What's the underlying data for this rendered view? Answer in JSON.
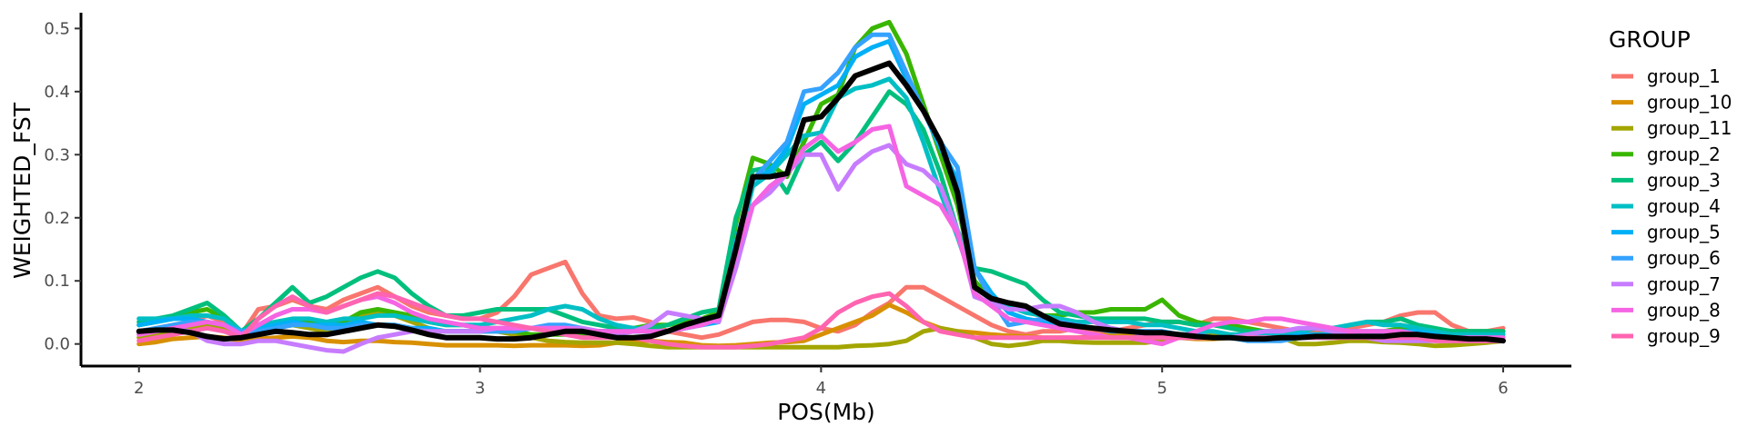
{
  "chart_data": {
    "type": "line",
    "xlabel": "POS(Mb)",
    "ylabel": "WEIGHTED_FST",
    "xlim": [
      1.83,
      6.2
    ],
    "ylim": [
      -0.035,
      0.525
    ],
    "x_ticks": [
      2,
      3,
      4,
      5,
      6
    ],
    "y_ticks": [
      0.0,
      0.1,
      0.2,
      0.3,
      0.4,
      0.5
    ],
    "x_tick_labels": [
      "2",
      "3",
      "4",
      "5",
      "6"
    ],
    "y_tick_labels": [
      "0.0",
      "0.1",
      "0.2",
      "0.3",
      "0.4",
      "0.5"
    ],
    "grid": false,
    "legend": {
      "title": "GROUP",
      "position": "right"
    },
    "x": [
      2.0,
      2.05,
      2.1,
      2.15,
      2.2,
      2.25,
      2.3,
      2.35,
      2.4,
      2.45,
      2.5,
      2.55,
      2.6,
      2.65,
      2.7,
      2.75,
      2.8,
      2.85,
      2.9,
      2.95,
      3.0,
      3.05,
      3.1,
      3.15,
      3.2,
      3.25,
      3.3,
      3.35,
      3.4,
      3.45,
      3.5,
      3.55,
      3.6,
      3.65,
      3.7,
      3.75,
      3.8,
      3.85,
      3.9,
      3.95,
      4.0,
      4.05,
      4.1,
      4.15,
      4.2,
      4.25,
      4.3,
      4.35,
      4.4,
      4.45,
      4.5,
      4.55,
      4.6,
      4.65,
      4.7,
      4.75,
      4.8,
      4.85,
      4.9,
      4.95,
      5.0,
      5.05,
      5.1,
      5.15,
      5.2,
      5.25,
      5.3,
      5.35,
      5.4,
      5.45,
      5.5,
      5.55,
      5.6,
      5.65,
      5.7,
      5.75,
      5.8,
      5.85,
      5.9,
      5.95,
      6.0
    ],
    "series": [
      {
        "name": "group_1",
        "color": "#F8766D",
        "width": 5,
        "values": [
          0.02,
          0.025,
          0.03,
          0.035,
          0.045,
          0.035,
          0.015,
          0.055,
          0.06,
          0.07,
          0.06,
          0.055,
          0.07,
          0.08,
          0.09,
          0.075,
          0.06,
          0.05,
          0.045,
          0.04,
          0.04,
          0.05,
          0.075,
          0.11,
          0.12,
          0.13,
          0.08,
          0.045,
          0.04,
          0.042,
          0.035,
          0.02,
          0.015,
          0.01,
          0.015,
          0.025,
          0.035,
          0.038,
          0.038,
          0.035,
          0.025,
          0.02,
          0.03,
          0.05,
          0.065,
          0.09,
          0.09,
          0.075,
          0.06,
          0.045,
          0.03,
          0.02,
          0.015,
          0.02,
          0.02,
          0.025,
          0.02,
          0.02,
          0.025,
          0.03,
          0.035,
          0.035,
          0.03,
          0.04,
          0.04,
          0.035,
          0.03,
          0.025,
          0.02,
          0.02,
          0.02,
          0.025,
          0.03,
          0.035,
          0.045,
          0.05,
          0.05,
          0.03,
          0.02,
          0.02,
          0.025
        ]
      },
      {
        "name": "group_10",
        "color": "#D89000",
        "width": 5,
        "values": [
          0.0,
          0.003,
          0.008,
          0.01,
          0.012,
          0.01,
          0.005,
          0.008,
          0.01,
          0.012,
          0.01,
          0.005,
          0.003,
          0.005,
          0.005,
          0.003,
          0.002,
          0.0,
          -0.002,
          -0.002,
          -0.002,
          -0.002,
          -0.003,
          -0.002,
          -0.002,
          -0.002,
          -0.003,
          -0.002,
          0.002,
          0.005,
          0.005,
          0.003,
          0.002,
          -0.002,
          -0.003,
          -0.002,
          0.0,
          0.002,
          0.003,
          0.005,
          0.015,
          0.025,
          0.035,
          0.045,
          0.062,
          0.05,
          0.035,
          0.025,
          0.02,
          0.018,
          0.015,
          0.013,
          0.012,
          0.01,
          0.01,
          0.01,
          0.012,
          0.015,
          0.015,
          0.015,
          0.012,
          0.01,
          0.008,
          0.008,
          0.01,
          0.01,
          0.01,
          0.008,
          0.01,
          0.015,
          0.02,
          0.018,
          0.012,
          0.01,
          0.008,
          0.008,
          0.008,
          0.005,
          0.005,
          0.005,
          0.005
        ]
      },
      {
        "name": "group_11",
        "color": "#A3A500",
        "width": 5,
        "values": [
          0.01,
          0.015,
          0.02,
          0.025,
          0.03,
          0.025,
          0.015,
          0.02,
          0.025,
          0.03,
          0.025,
          0.02,
          0.03,
          0.045,
          0.05,
          0.045,
          0.035,
          0.025,
          0.02,
          0.02,
          0.02,
          0.02,
          0.015,
          0.01,
          0.005,
          0.003,
          0.002,
          0.002,
          0.002,
          0.0,
          -0.003,
          -0.005,
          -0.005,
          -0.005,
          -0.005,
          -0.005,
          -0.005,
          -0.005,
          -0.005,
          -0.005,
          -0.005,
          -0.005,
          -0.003,
          -0.002,
          0.0,
          0.005,
          0.02,
          0.025,
          0.02,
          0.01,
          0.0,
          -0.003,
          0.0,
          0.005,
          0.005,
          0.003,
          0.002,
          0.002,
          0.002,
          0.002,
          0.005,
          0.01,
          0.015,
          0.015,
          0.015,
          0.012,
          0.01,
          0.01,
          0.0,
          0.0,
          0.002,
          0.005,
          0.005,
          0.003,
          0.002,
          0.0,
          -0.003,
          -0.002,
          0.0,
          0.002,
          0.005
        ]
      },
      {
        "name": "group_2",
        "color": "#39B600",
        "width": 5,
        "values": [
          0.03,
          0.035,
          0.04,
          0.05,
          0.055,
          0.04,
          0.02,
          0.025,
          0.03,
          0.035,
          0.035,
          0.03,
          0.035,
          0.05,
          0.055,
          0.05,
          0.045,
          0.035,
          0.03,
          0.03,
          0.025,
          0.025,
          0.02,
          0.015,
          0.015,
          0.015,
          0.015,
          0.02,
          0.02,
          0.025,
          0.03,
          0.03,
          0.035,
          0.04,
          0.05,
          0.19,
          0.295,
          0.285,
          0.265,
          0.32,
          0.38,
          0.395,
          0.47,
          0.5,
          0.51,
          0.46,
          0.38,
          0.3,
          0.22,
          0.1,
          0.07,
          0.06,
          0.05,
          0.045,
          0.045,
          0.05,
          0.05,
          0.055,
          0.055,
          0.055,
          0.07,
          0.045,
          0.035,
          0.03,
          0.03,
          0.025,
          0.02,
          0.015,
          0.015,
          0.015,
          0.015,
          0.015,
          0.015,
          0.02,
          0.025,
          0.025,
          0.02,
          0.02,
          0.02,
          0.02,
          0.02
        ]
      },
      {
        "name": "group_3",
        "color": "#00BF7D",
        "width": 5,
        "values": [
          0.035,
          0.04,
          0.045,
          0.055,
          0.065,
          0.045,
          0.02,
          0.04,
          0.065,
          0.09,
          0.065,
          0.075,
          0.09,
          0.105,
          0.115,
          0.105,
          0.08,
          0.06,
          0.045,
          0.045,
          0.05,
          0.055,
          0.055,
          0.055,
          0.055,
          0.045,
          0.035,
          0.03,
          0.025,
          0.025,
          0.025,
          0.03,
          0.04,
          0.05,
          0.055,
          0.2,
          0.275,
          0.28,
          0.24,
          0.3,
          0.32,
          0.29,
          0.32,
          0.36,
          0.4,
          0.38,
          0.34,
          0.27,
          0.18,
          0.12,
          0.115,
          0.105,
          0.095,
          0.07,
          0.05,
          0.045,
          0.04,
          0.04,
          0.04,
          0.04,
          0.035,
          0.035,
          0.03,
          0.03,
          0.025,
          0.02,
          0.02,
          0.02,
          0.02,
          0.025,
          0.025,
          0.03,
          0.035,
          0.035,
          0.04,
          0.03,
          0.025,
          0.02,
          0.02,
          0.02,
          0.02
        ]
      },
      {
        "name": "group_4",
        "color": "#00BFC4",
        "width": 5,
        "values": [
          0.04,
          0.04,
          0.04,
          0.045,
          0.045,
          0.04,
          0.02,
          0.03,
          0.035,
          0.04,
          0.04,
          0.035,
          0.04,
          0.04,
          0.045,
          0.045,
          0.04,
          0.035,
          0.03,
          0.03,
          0.03,
          0.035,
          0.04,
          0.045,
          0.055,
          0.06,
          0.055,
          0.04,
          0.03,
          0.025,
          0.02,
          0.02,
          0.025,
          0.03,
          0.035,
          0.14,
          0.25,
          0.27,
          0.3,
          0.33,
          0.335,
          0.39,
          0.405,
          0.41,
          0.42,
          0.39,
          0.32,
          0.24,
          0.17,
          0.09,
          0.07,
          0.06,
          0.05,
          0.045,
          0.04,
          0.035,
          0.035,
          0.035,
          0.035,
          0.03,
          0.03,
          0.025,
          0.02,
          0.02,
          0.015,
          0.015,
          0.015,
          0.015,
          0.02,
          0.025,
          0.025,
          0.03,
          0.035,
          0.03,
          0.03,
          0.025,
          0.02,
          0.015,
          0.015,
          0.015,
          0.015
        ]
      },
      {
        "name": "group_5",
        "color": "#00B0F6",
        "width": 5,
        "values": [
          0.03,
          0.035,
          0.04,
          0.04,
          0.035,
          0.03,
          0.02,
          0.025,
          0.03,
          0.035,
          0.03,
          0.03,
          0.03,
          0.035,
          0.03,
          0.03,
          0.025,
          0.025,
          0.02,
          0.02,
          0.02,
          0.02,
          0.02,
          0.025,
          0.025,
          0.025,
          0.02,
          0.02,
          0.02,
          0.02,
          0.02,
          0.02,
          0.025,
          0.03,
          0.035,
          0.16,
          0.26,
          0.275,
          0.31,
          0.38,
          0.395,
          0.41,
          0.455,
          0.47,
          0.48,
          0.42,
          0.37,
          0.31,
          0.26,
          0.12,
          0.08,
          0.05,
          0.04,
          0.035,
          0.03,
          0.03,
          0.025,
          0.025,
          0.02,
          0.02,
          0.02,
          0.015,
          0.015,
          0.01,
          0.01,
          0.01,
          0.01,
          0.01,
          0.015,
          0.015,
          0.015,
          0.02,
          0.02,
          0.02,
          0.02,
          0.02,
          0.015,
          0.01,
          0.01,
          0.01,
          0.01
        ]
      },
      {
        "name": "group_6",
        "color": "#35A2FF",
        "width": 5,
        "values": [
          0.02,
          0.025,
          0.03,
          0.035,
          0.035,
          0.03,
          0.02,
          0.02,
          0.025,
          0.03,
          0.03,
          0.025,
          0.025,
          0.03,
          0.03,
          0.03,
          0.025,
          0.02,
          0.02,
          0.02,
          0.02,
          0.02,
          0.02,
          0.025,
          0.03,
          0.03,
          0.025,
          0.02,
          0.02,
          0.02,
          0.02,
          0.02,
          0.025,
          0.03,
          0.04,
          0.15,
          0.26,
          0.29,
          0.32,
          0.4,
          0.405,
          0.43,
          0.47,
          0.49,
          0.49,
          0.43,
          0.37,
          0.32,
          0.28,
          0.12,
          0.07,
          0.03,
          0.035,
          0.04,
          0.035,
          0.03,
          0.025,
          0.02,
          0.02,
          0.02,
          0.02,
          0.015,
          0.015,
          0.01,
          0.01,
          0.005,
          0.005,
          0.005,
          0.01,
          0.01,
          0.01,
          0.015,
          0.015,
          0.015,
          0.015,
          0.015,
          0.01,
          0.01,
          0.01,
          0.01,
          0.01
        ]
      },
      {
        "name": "group_7",
        "color": "#C77CFF",
        "width": 5,
        "values": [
          0.015,
          0.02,
          0.025,
          0.02,
          0.005,
          0.0,
          0.0,
          0.005,
          0.005,
          0.0,
          -0.005,
          -0.01,
          -0.012,
          0.0,
          0.01,
          0.015,
          0.02,
          0.02,
          0.02,
          0.02,
          0.02,
          0.025,
          0.025,
          0.025,
          0.025,
          0.025,
          0.025,
          0.02,
          0.015,
          0.02,
          0.03,
          0.05,
          0.045,
          0.04,
          0.035,
          0.12,
          0.22,
          0.24,
          0.27,
          0.3,
          0.3,
          0.245,
          0.285,
          0.305,
          0.315,
          0.285,
          0.275,
          0.25,
          0.18,
          0.075,
          0.065,
          0.055,
          0.055,
          0.06,
          0.06,
          0.05,
          0.035,
          0.025,
          0.02,
          0.015,
          0.015,
          0.01,
          0.01,
          0.01,
          0.01,
          0.015,
          0.02,
          0.02,
          0.025,
          0.025,
          0.02,
          0.015,
          0.01,
          0.005,
          0.005,
          0.005,
          0.005,
          0.005,
          0.005,
          0.005,
          0.005
        ]
      },
      {
        "name": "group_8",
        "color": "#F564E3",
        "width": 5,
        "values": [
          0.015,
          0.02,
          0.025,
          0.03,
          0.035,
          0.03,
          0.015,
          0.03,
          0.045,
          0.055,
          0.055,
          0.05,
          0.06,
          0.07,
          0.075,
          0.065,
          0.05,
          0.04,
          0.035,
          0.03,
          0.025,
          0.025,
          0.025,
          0.025,
          0.025,
          0.025,
          0.02,
          0.02,
          0.02,
          0.02,
          0.02,
          0.02,
          0.025,
          0.03,
          0.04,
          0.14,
          0.22,
          0.25,
          0.27,
          0.31,
          0.33,
          0.305,
          0.32,
          0.34,
          0.345,
          0.25,
          0.235,
          0.22,
          0.175,
          0.08,
          0.06,
          0.04,
          0.035,
          0.03,
          0.025,
          0.02,
          0.015,
          0.01,
          0.01,
          0.005,
          0.0,
          0.01,
          0.02,
          0.03,
          0.035,
          0.035,
          0.04,
          0.04,
          0.035,
          0.03,
          0.025,
          0.02,
          0.02,
          0.02,
          0.02,
          0.015,
          0.01,
          0.01,
          0.01,
          0.01,
          0.01
        ]
      },
      {
        "name": "group_9",
        "color": "#FF64B0",
        "width": 5,
        "values": [
          0.005,
          0.01,
          0.015,
          0.02,
          0.025,
          0.02,
          0.01,
          0.04,
          0.06,
          0.075,
          0.06,
          0.05,
          0.06,
          0.07,
          0.08,
          0.075,
          0.065,
          0.055,
          0.045,
          0.04,
          0.04,
          0.035,
          0.03,
          0.025,
          0.02,
          0.015,
          0.01,
          0.01,
          0.01,
          0.01,
          0.005,
          0.0,
          -0.003,
          -0.005,
          -0.005,
          -0.005,
          -0.003,
          0.0,
          0.005,
          0.01,
          0.025,
          0.05,
          0.065,
          0.075,
          0.08,
          0.06,
          0.035,
          0.02,
          0.015,
          0.01,
          0.01,
          0.01,
          0.01,
          0.01,
          0.01,
          0.01,
          0.01,
          0.01,
          0.01,
          0.01,
          0.01,
          0.01,
          0.01,
          0.01,
          0.01,
          0.01,
          0.01,
          0.01,
          0.01,
          0.01,
          0.01,
          0.01,
          0.01,
          0.01,
          0.01,
          0.01,
          0.005,
          0.005,
          0.005,
          0.005,
          0.005
        ]
      },
      {
        "name": "",
        "color": "#000000",
        "width": 6,
        "values": [
          0.02,
          0.022,
          0.022,
          0.018,
          0.012,
          0.008,
          0.01,
          0.015,
          0.02,
          0.018,
          0.015,
          0.015,
          0.02,
          0.025,
          0.03,
          0.028,
          0.022,
          0.015,
          0.01,
          0.01,
          0.01,
          0.008,
          0.008,
          0.01,
          0.015,
          0.02,
          0.02,
          0.015,
          0.01,
          0.01,
          0.012,
          0.02,
          0.03,
          0.038,
          0.045,
          0.15,
          0.265,
          0.265,
          0.27,
          0.355,
          0.36,
          0.39,
          0.425,
          0.435,
          0.445,
          0.41,
          0.37,
          0.32,
          0.24,
          0.09,
          0.072,
          0.065,
          0.06,
          0.045,
          0.032,
          0.028,
          0.025,
          0.022,
          0.02,
          0.018,
          0.018,
          0.015,
          0.012,
          0.01,
          0.01,
          0.008,
          0.008,
          0.01,
          0.01,
          0.012,
          0.012,
          0.012,
          0.012,
          0.012,
          0.015,
          0.015,
          0.012,
          0.01,
          0.008,
          0.008,
          0.005
        ]
      }
    ]
  }
}
